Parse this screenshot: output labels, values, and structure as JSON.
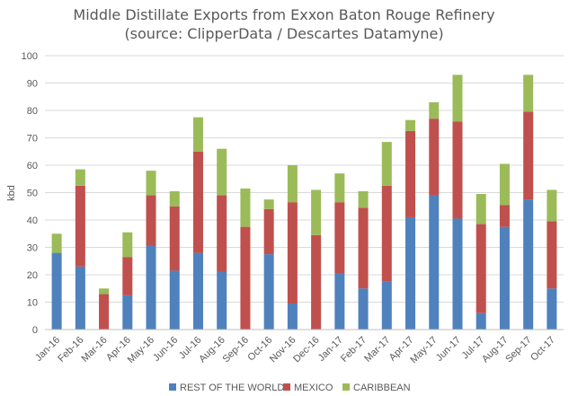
{
  "chart_data": {
    "type": "bar",
    "stacked": true,
    "title": "Middle Distillate Exports from Exxon Baton Rouge Refinery",
    "subtitle": "(source: ClipperData / Descartes Datamyne)",
    "ylabel": "kbd",
    "ylim": [
      0,
      100
    ],
    "yticks": [
      0,
      10,
      20,
      30,
      40,
      50,
      60,
      70,
      80,
      90,
      100
    ],
    "grid": true,
    "legend_position": "bottom",
    "categories": [
      "Jan-16",
      "Feb-16",
      "Mar-16",
      "Apr-16",
      "May-16",
      "Jun-16",
      "Jul-16",
      "Aug-16",
      "Sep-16",
      "Oct-16",
      "Nov-16",
      "Dec-16",
      "Jan-17",
      "Feb-17",
      "Mar-17",
      "Apr-17",
      "May-17",
      "Jun-17",
      "Jul-17",
      "Aug-17",
      "Sep-17",
      "Oct-17"
    ],
    "series": [
      {
        "name": "REST OF THE WORLD",
        "color": "#4f81bd",
        "values": [
          28,
          23,
          0,
          12.5,
          30.5,
          21.5,
          28,
          21,
          0,
          27.5,
          9.5,
          0,
          20.5,
          15,
          17.5,
          41,
          49,
          40.5,
          6,
          37.5,
          47.5,
          15
        ]
      },
      {
        "name": "MEXICO",
        "color": "#c0504d",
        "values": [
          0,
          29.5,
          13,
          14,
          18.5,
          23.5,
          37,
          28,
          37.5,
          16.5,
          37,
          34.5,
          26,
          29.5,
          35,
          31.5,
          28,
          35.5,
          32.5,
          8,
          32,
          24.5
        ]
      },
      {
        "name": "CARIBBEAN",
        "color": "#9bbb59",
        "values": [
          7,
          6,
          2,
          9,
          9,
          5.5,
          12.5,
          17,
          14,
          3.5,
          13.5,
          16.5,
          10.5,
          6,
          16,
          4,
          6,
          17,
          11,
          15,
          13.5,
          11.5
        ]
      }
    ]
  }
}
